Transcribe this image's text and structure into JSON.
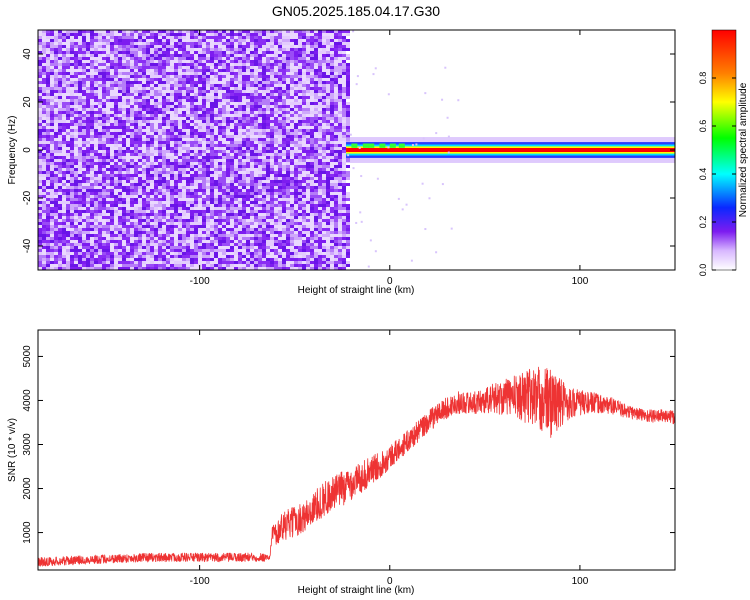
{
  "title": "GN05.2025.185.04.17.G30",
  "chart_data": [
    {
      "type": "heatmap",
      "title": "GN05.2025.185.04.17.G30",
      "xlabel": "Height of straight line (km)",
      "ylabel": "Frequency (Hz)",
      "xlim": [
        -185,
        150
      ],
      "ylim": [
        -50,
        50
      ],
      "x_ticks": [
        -100,
        0,
        100
      ],
      "x_tick_labels": [
        "-100",
        "0",
        "100"
      ],
      "y_ticks": [
        -40,
        -20,
        0,
        20,
        40
      ],
      "y_tick_labels": [
        "-40",
        "-20",
        "0",
        "20",
        "40"
      ],
      "regions": [
        {
          "x": [
            -185,
            -23
          ],
          "y": [
            -50,
            50
          ],
          "description": "broadband noise",
          "amplitude": [
            0.05,
            0.2
          ]
        },
        {
          "x": [
            -23,
            150
          ],
          "y": [
            -3,
            3
          ],
          "description": "narrow line centered at 0 Hz",
          "amplitude": [
            0.8,
            1.0
          ]
        }
      ],
      "colorbar": {
        "label": "Normalized spectral amplitude",
        "range": [
          0,
          1
        ],
        "ticks": [
          0.0,
          0.2,
          0.4,
          0.6,
          0.8
        ],
        "tick_labels": [
          "0.0",
          "0.2",
          "0.4",
          "0.6",
          "0.8"
        ],
        "colors": [
          "#ffffff",
          "#7d1cf0",
          "#0a28ff",
          "#00ffff",
          "#00ff00",
          "#ffff00",
          "#ff7f00",
          "#ff0000"
        ]
      },
      "grid": false
    },
    {
      "type": "line",
      "xlabel": "Height of straight line (km)",
      "ylabel": "SNR (10 * v/v)",
      "xlim": [
        -185,
        150
      ],
      "ylim": [
        150,
        5600
      ],
      "x_ticks": [
        -100,
        0,
        100
      ],
      "x_tick_labels": [
        "-100",
        "0",
        "100"
      ],
      "y_ticks": [
        1000,
        2000,
        3000,
        4000,
        5000
      ],
      "y_tick_labels": [
        "1000",
        "2000",
        "3000",
        "4000",
        "5000"
      ],
      "color": "#ee3333",
      "series": [
        {
          "x": [
            -185,
            -170,
            -150,
            -130,
            -110,
            -90,
            -75,
            -63,
            -62,
            -55,
            -45,
            -35,
            -25,
            -15,
            -5,
            5,
            15,
            25,
            35,
            45,
            55,
            65,
            75,
            85,
            95,
            105,
            115,
            125,
            135,
            145,
            150
          ],
          "y": [
            330,
            360,
            400,
            430,
            440,
            430,
            440,
            440,
            1000,
            1150,
            1350,
            1750,
            2000,
            2250,
            2550,
            2900,
            3300,
            3700,
            3950,
            3950,
            4050,
            4100,
            4100,
            3950,
            3950,
            3950,
            3900,
            3750,
            3650,
            3650,
            3600
          ],
          "noise": [
            100,
            100,
            100,
            100,
            100,
            100,
            100,
            100,
            300,
            350,
            350,
            400,
            400,
            350,
            300,
            250,
            250,
            250,
            250,
            250,
            350,
            450,
            700,
            800,
            350,
            250,
            200,
            150,
            150,
            150,
            150
          ]
        }
      ],
      "grid": false
    }
  ]
}
